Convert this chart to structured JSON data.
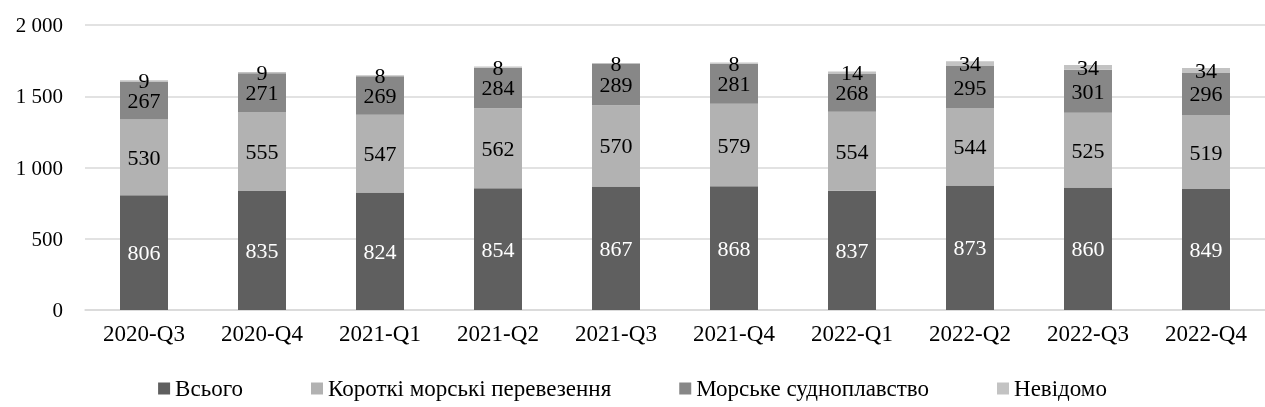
{
  "chart_data": {
    "type": "bar",
    "stacked": true,
    "categories": [
      "2020-Q3",
      "2020-Q4",
      "2021-Q1",
      "2021-Q2",
      "2021-Q3",
      "2021-Q4",
      "2022-Q1",
      "2022-Q2",
      "2022-Q3",
      "2022-Q4"
    ],
    "series": [
      {
        "name": "Всього",
        "color": "#5f5f5f",
        "values": [
          806,
          835,
          824,
          854,
          867,
          868,
          837,
          873,
          860,
          849
        ]
      },
      {
        "name": "Короткі морські перевезення",
        "color": "#b2b2b2",
        "values": [
          530,
          555,
          547,
          562,
          570,
          579,
          554,
          544,
          525,
          519
        ]
      },
      {
        "name": "Морське судноплавство",
        "color": "#878787",
        "values": [
          267,
          271,
          269,
          284,
          289,
          281,
          268,
          295,
          301,
          296
        ]
      },
      {
        "name": "Невідомо",
        "color": "#c3c3c3",
        "values": [
          9,
          9,
          8,
          8,
          8,
          8,
          14,
          34,
          34,
          34
        ]
      }
    ],
    "ylim": [
      0,
      2000
    ],
    "yticks": [
      0,
      500,
      {
        "value": 1000,
        "label": "1 000"
      },
      {
        "value": 1500,
        "label": "1 500"
      },
      {
        "value": 2000,
        "label": "2 000"
      }
    ],
    "grid": "y",
    "legend": "bottom",
    "data_labels": true
  }
}
